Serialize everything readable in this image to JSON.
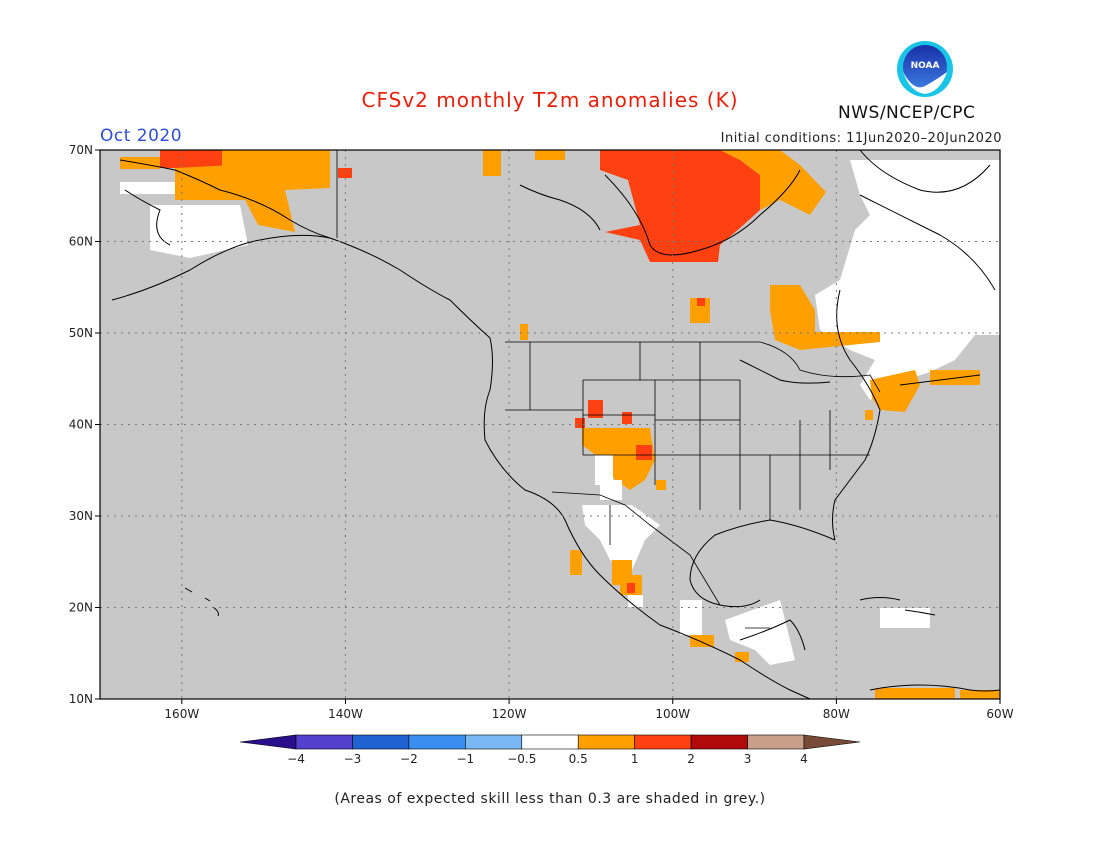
{
  "title": "CFSv2 monthly T2m anomalies (K)",
  "valid_month": "Oct 2020",
  "initial_conditions": "Initial conditions: 11Jun2020–20Jun2020",
  "agency": "NWS/NCEP/CPC",
  "logo_text": "NOAA",
  "skill_note": "(Areas of expected skill less than 0.3 are shaded in grey.)",
  "map": {
    "lon_range": [
      -170,
      -60
    ],
    "lat_range": [
      10,
      70
    ],
    "lon_labels": [
      "160W",
      "140W",
      "120W",
      "100W",
      "80W",
      "60W"
    ],
    "lat_labels": [
      "70N",
      "60N",
      "50N",
      "40N",
      "30N",
      "20N",
      "10N"
    ],
    "background_color": "#c8c8c8"
  },
  "legend": {
    "ticks": [
      "−4",
      "−3",
      "−2",
      "−1",
      "−0.5",
      "0.5",
      "1",
      "2",
      "3",
      "4"
    ],
    "bins": [
      {
        "range": "< −4",
        "color": "#2a0f8c"
      },
      {
        "range": "−4 to −3",
        "color": "#5340cc"
      },
      {
        "range": "−3 to −2",
        "color": "#1f63d1"
      },
      {
        "range": "−2 to −1",
        "color": "#3a8ef0"
      },
      {
        "range": "−1 to −0.5",
        "color": "#7ab8f4"
      },
      {
        "range": "−0.5 to 0.5",
        "color": "#ffffff"
      },
      {
        "range": "0.5 to 1",
        "color": "#ff9f00"
      },
      {
        "range": "1 to 2",
        "color": "#ff4010"
      },
      {
        "range": "2 to 3",
        "color": "#b00a0a"
      },
      {
        "range": "3 to 4",
        "color": "#c99f8a"
      },
      {
        "range": "> 4",
        "color": "#7a4a38"
      }
    ]
  }
}
